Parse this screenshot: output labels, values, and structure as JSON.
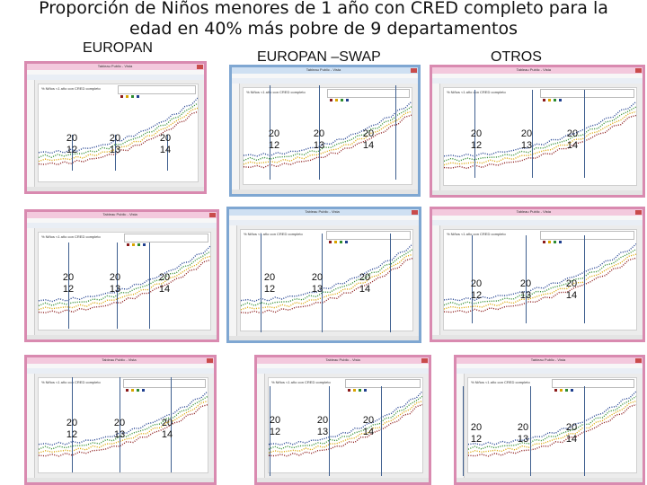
{
  "title_line1": "Proporción de Niños menores de 1 año con CRED completo para la",
  "title_line2": "edad en 40% más pobre de 9 departamentos",
  "headers": {
    "europan": "EUROPAN",
    "swap": "EUROPAN –SWAP",
    "otros": "OTROS"
  },
  "year_labels": [
    {
      "top": "20",
      "bottom": "12"
    },
    {
      "top": "20",
      "bottom": "13"
    },
    {
      "top": "20",
      "bottom": "14"
    }
  ],
  "window": {
    "app_title": "Tableau Public - Vista",
    "chart_title": "% Niños <1 año con CRED completo"
  },
  "colors": {
    "series_a": "#8b1a1a",
    "series_b": "#d9a400",
    "series_c": "#2e8b2e",
    "series_d": "#1f3f8f"
  }
}
